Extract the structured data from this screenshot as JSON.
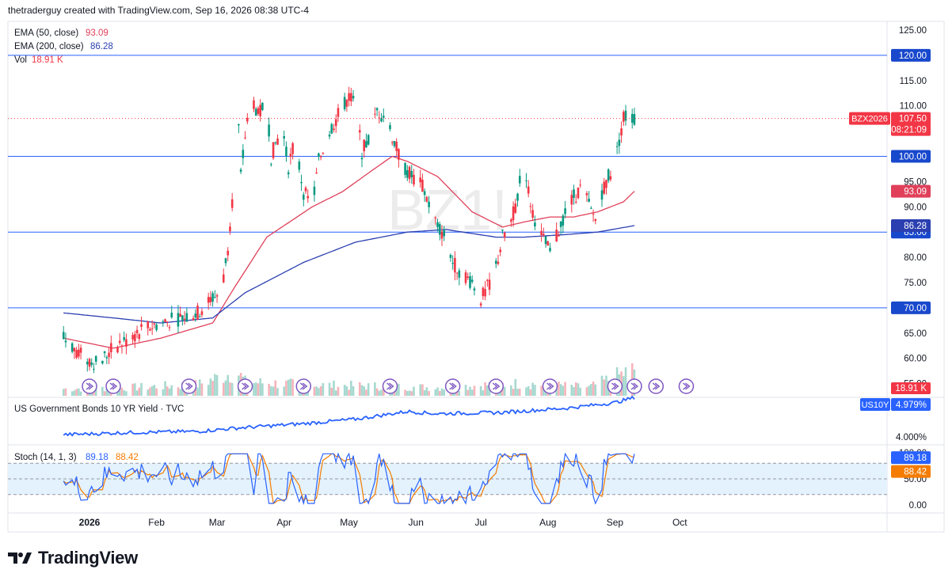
{
  "header": {
    "attribution": "thetraderguy created with TradingView.com, Sep 16, 2026 08:38 UTC-4"
  },
  "watermark": "BZ1!",
  "brand": {
    "name": "TradingView",
    "icon": "tradingview-logo-icon"
  },
  "colors": {
    "up": "#089981",
    "down": "#f23645",
    "ema50": "#e0405a",
    "ema200": "#2b3fb0",
    "hline": "#2962ff",
    "yield": "#2962ff",
    "stochK": "#2962ff",
    "stochD": "#f57c00",
    "stochBand": "#e3f2fd",
    "volUp": "#a6d9cf",
    "volDown": "#f7b3ba",
    "event": "#7e57c2"
  },
  "price_panel": {
    "indicators": [
      {
        "name": "EMA (50, close)",
        "value": "93.09",
        "color": "#e0405a"
      },
      {
        "name": "EMA (200, close)",
        "value": "86.28",
        "color": "#2b3fb0"
      },
      {
        "name": "Vol",
        "value": "18.91 K",
        "color": "#f23645"
      }
    ],
    "ticks": [
      "125.00",
      "120.00",
      "115.00",
      "110.00",
      "105.00",
      "100.00",
      "95.00",
      "90.00",
      "85.00",
      "80.00",
      "75.00",
      "70.00",
      "65.00",
      "60.00",
      "55.00"
    ],
    "horizontal_lines": [
      "120.00",
      "100.00",
      "85.00",
      "70.00"
    ],
    "last_price": {
      "symbol": "BZX2026",
      "price": "107.50",
      "countdown": "08:21:09"
    },
    "ema_labels": [
      "93.09",
      "86.28"
    ],
    "vol_label": "18.91 K"
  },
  "yield_panel": {
    "title": "US Government Bonds 10 YR Yield · TVC",
    "tag": "US10Y",
    "value": "4.979%",
    "tick": "4.000%"
  },
  "stoch_panel": {
    "title": "Stoch (14, 1, 3)",
    "k": "89.18",
    "d": "88.42",
    "ticks": [
      "100.00",
      "50.00",
      "0.00"
    ],
    "k_label": "89.18",
    "d_label": "88.42"
  },
  "x_axis": [
    "2026",
    "Feb",
    "Mar",
    "Apr",
    "May",
    "Jun",
    "Jul",
    "Aug",
    "Sep",
    "Oct"
  ],
  "chart_data": {
    "type": "candlestick",
    "x_axis": [
      "2026",
      "Feb",
      "Mar",
      "Apr",
      "May",
      "Jun",
      "Jul",
      "Aug",
      "Sep",
      "Oct"
    ],
    "ylim": [
      52,
      127
    ],
    "horizontal_levels": [
      120,
      100,
      85,
      70
    ],
    "price_keypoints": [
      [
        "Dec 20",
        64
      ],
      [
        "Dec 30",
        60
      ],
      [
        "Jan 5",
        59
      ],
      [
        "Jan 12",
        62
      ],
      [
        "Jan 20",
        64
      ],
      [
        "Jan 27",
        66
      ],
      [
        "Feb 3",
        67
      ],
      [
        "Feb 12",
        68
      ],
      [
        "Feb 20",
        69
      ],
      [
        "Feb 27",
        72
      ],
      [
        "Mar 3",
        73
      ],
      [
        "Mar 6",
        82
      ],
      [
        "Mar 9",
        96
      ],
      [
        "Mar 10",
        115
      ],
      [
        "Mar 12",
        96
      ],
      [
        "Mar 14",
        104
      ],
      [
        "Mar 17",
        112
      ],
      [
        "Mar 20",
        108
      ],
      [
        "Mar 24",
        111
      ],
      [
        "Mar 26",
        100
      ],
      [
        "Mar 31",
        106
      ],
      [
        "Apr 3",
        98
      ],
      [
        "Apr 6",
        103
      ],
      [
        "Apr 10",
        93
      ],
      [
        "Apr 14",
        90
      ],
      [
        "Apr 17",
        99
      ],
      [
        "Apr 22",
        105
      ],
      [
        "May 1",
        112
      ],
      [
        "May 4",
        110
      ],
      [
        "May 7",
        101
      ],
      [
        "May 11",
        104
      ],
      [
        "May 14",
        109
      ],
      [
        "May 18",
        108
      ],
      [
        "May 21",
        104
      ],
      [
        "May 25",
        99
      ],
      [
        "May 28",
        97
      ],
      [
        "Jun 4",
        94
      ],
      [
        "Jun 11",
        86
      ],
      [
        "Jun 15",
        84
      ],
      [
        "Jun 18",
        79
      ],
      [
        "Jun 22",
        77
      ],
      [
        "Jun 27",
        75
      ],
      [
        "Jul 1",
        72
      ],
      [
        "Jul 3",
        73
      ],
      [
        "Jul 8",
        78
      ],
      [
        "Jul 11",
        84
      ],
      [
        "Jul 15",
        87
      ],
      [
        "Jul 18",
        92
      ],
      [
        "Jul 21",
        100
      ],
      [
        "Jul 23",
        93
      ],
      [
        "Jul 25",
        89
      ],
      [
        "Jul 28",
        85
      ],
      [
        "Aug 2",
        81
      ],
      [
        "Aug 5",
        84
      ],
      [
        "Aug 9",
        89
      ],
      [
        "Aug 13",
        92
      ],
      [
        "Aug 17",
        94
      ],
      [
        "Aug 21",
        89
      ],
      [
        "Aug 24",
        87
      ],
      [
        "Aug 26",
        93
      ],
      [
        "Aug 30",
        97
      ],
      [
        "Sep 2",
        101
      ],
      [
        "Sep 5",
        108
      ],
      [
        "Sep 8",
        107.5
      ],
      [
        "Sep 10",
        107.5
      ]
    ],
    "ema50_keypoints": [
      [
        "Dec 20",
        64
      ],
      [
        "Jan 12",
        62
      ],
      [
        "Feb 3",
        64
      ],
      [
        "Feb 27",
        67
      ],
      [
        "Mar 9",
        74
      ],
      [
        "Mar 24",
        84
      ],
      [
        "Apr 14",
        90
      ],
      [
        "Apr 28",
        93
      ],
      [
        "May 11",
        97
      ],
      [
        "May 21",
        100
      ],
      [
        "May 28",
        99
      ],
      [
        "Jun 11",
        96
      ],
      [
        "Jun 27",
        89
      ],
      [
        "Jul 11",
        86
      ],
      [
        "Jul 21",
        87
      ],
      [
        "Aug 2",
        88
      ],
      [
        "Aug 13",
        88
      ],
      [
        "Aug 24",
        89
      ],
      [
        "Sep 5",
        91
      ],
      [
        "Sep 10",
        93.09
      ]
    ],
    "ema200_keypoints": [
      [
        "Dec 20",
        69
      ],
      [
        "Jan 12",
        68
      ],
      [
        "Feb 3",
        67
      ],
      [
        "Feb 27",
        68
      ],
      [
        "Mar 14",
        73
      ],
      [
        "Apr 10",
        79
      ],
      [
        "May 4",
        83
      ],
      [
        "May 28",
        85
      ],
      [
        "Jun 15",
        85.5
      ],
      [
        "Jul 8",
        84
      ],
      [
        "Jul 21",
        84
      ],
      [
        "Aug 9",
        84.5
      ],
      [
        "Aug 24",
        85
      ],
      [
        "Sep 10",
        86.28
      ]
    ],
    "volume_keypoints": [
      [
        "Dec 20",
        5
      ],
      [
        "Jan 20",
        6
      ],
      [
        "Feb 20",
        8
      ],
      [
        "Mar 10",
        18
      ],
      [
        "Mar 14",
        10
      ],
      [
        "Apr 10",
        8
      ],
      [
        "May 10",
        7
      ],
      [
        "Jun 10",
        6
      ],
      [
        "Jul 20",
        9
      ],
      [
        "Aug 20",
        6
      ],
      [
        "Sep 10",
        18.91
      ]
    ],
    "us10y_keypoints": [
      [
        "Dec 20",
        3.3
      ],
      [
        "Jan 20",
        3.4
      ],
      [
        "Feb 20",
        3.45
      ],
      [
        "Mar 10",
        3.6
      ],
      [
        "Apr 10",
        3.8
      ],
      [
        "May 4",
        4.0
      ],
      [
        "May 28",
        4.35
      ],
      [
        "Jun 10",
        4.25
      ],
      [
        "Jul 10",
        4.3
      ],
      [
        "Aug 10",
        4.5
      ],
      [
        "Sep 1",
        4.75
      ],
      [
        "Sep 10",
        4.979
      ]
    ],
    "stoch_k_last": 89.18,
    "stoch_d_last": 88.42,
    "stoch_band": [
      20,
      80
    ]
  }
}
